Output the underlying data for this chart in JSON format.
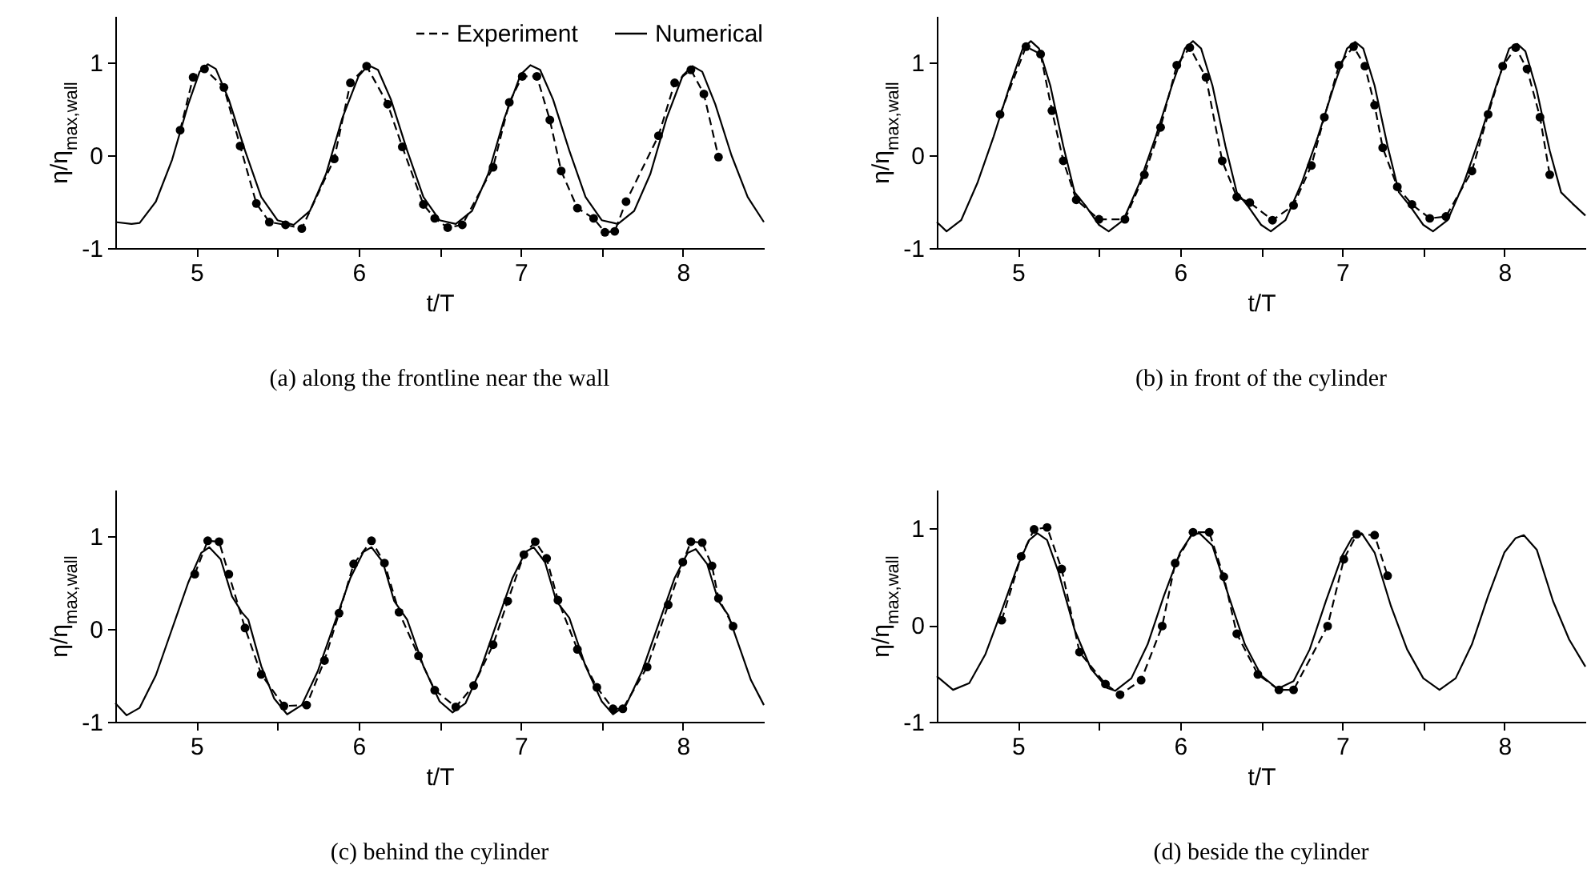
{
  "chart_data": [
    {
      "type": "line",
      "title": "(a) along the frontline near the wall",
      "xlabel": "t/T",
      "ylabel": "η/η$_{max,wall}$",
      "xlim": [
        4.5,
        8.5
      ],
      "ylim": [
        -1,
        1.5
      ],
      "xticks": [
        5,
        {
          "value": 5.5,
          "label": null
        },
        6,
        {
          "value": 6.5,
          "label": null
        },
        7,
        {
          "value": 7.5,
          "label": null
        },
        8
      ],
      "yticks": [
        -1,
        0,
        1
      ],
      "legend": "top right",
      "series": [
        {
          "name": "Experiment",
          "color": "#000000",
          "line_style": "dashed",
          "marker": "circle",
          "x": [
            4.9,
            4.98,
            5.05,
            5.17,
            5.27,
            5.37,
            5.45,
            5.55,
            5.65,
            5.85,
            5.95,
            6.05,
            6.18,
            6.27,
            6.4,
            6.47,
            6.55,
            6.64,
            6.83,
            6.93,
            7.01,
            7.1,
            7.18,
            7.25,
            7.35,
            7.45,
            7.52,
            7.58,
            7.65,
            7.85,
            7.95,
            8.05,
            8.13,
            8.22
          ],
          "values": [
            0.27,
            0.84,
            0.93,
            0.73,
            0.1,
            -0.52,
            -0.72,
            -0.75,
            -0.79,
            -0.04,
            0.78,
            0.96,
            0.55,
            0.09,
            -0.53,
            -0.68,
            -0.78,
            -0.75,
            -0.13,
            0.57,
            0.85,
            0.85,
            0.38,
            -0.17,
            -0.57,
            -0.68,
            -0.83,
            -0.82,
            -0.5,
            0.21,
            0.78,
            0.92,
            0.66,
            -0.02
          ]
        },
        {
          "name": "Numerical",
          "color": "#000000",
          "line_style": "solid",
          "marker": "none",
          "x": [
            4.5,
            4.6,
            4.65,
            4.75,
            4.85,
            4.95,
            5.02,
            5.07,
            5.12,
            5.2,
            5.3,
            5.4,
            5.5,
            5.6,
            5.7,
            5.8,
            5.9,
            6.0,
            6.06,
            6.12,
            6.2,
            6.3,
            6.4,
            6.5,
            6.6,
            6.7,
            6.8,
            6.9,
            7.0,
            7.06,
            7.12,
            7.2,
            7.3,
            7.4,
            7.5,
            7.6,
            7.7,
            7.8,
            7.9,
            8.0,
            8.06,
            8.12,
            8.2,
            8.3,
            8.4,
            8.5
          ],
          "values": [
            -0.72,
            -0.74,
            -0.73,
            -0.5,
            -0.05,
            0.55,
            0.9,
            0.98,
            0.93,
            0.6,
            0.05,
            -0.45,
            -0.7,
            -0.75,
            -0.6,
            -0.2,
            0.4,
            0.85,
            0.97,
            0.92,
            0.6,
            0.05,
            -0.45,
            -0.7,
            -0.74,
            -0.6,
            -0.2,
            0.4,
            0.87,
            0.97,
            0.92,
            0.6,
            0.05,
            -0.45,
            -0.7,
            -0.74,
            -0.6,
            -0.2,
            0.4,
            0.86,
            0.96,
            0.9,
            0.55,
            0.0,
            -0.45,
            -0.72
          ]
        }
      ]
    },
    {
      "type": "line",
      "title": "(b) in front of the cylinder",
      "xlabel": "t/T",
      "ylabel": "η/η$_{max,wall}$",
      "xlim": [
        4.5,
        8.5
      ],
      "ylim": [
        -1,
        1.5
      ],
      "xticks": [
        5,
        {
          "value": 5.5,
          "label": null
        },
        6,
        {
          "value": 6.5,
          "label": null
        },
        7,
        {
          "value": 7.5,
          "label": null
        },
        8
      ],
      "yticks": [
        -1,
        0,
        1
      ],
      "series": [
        {
          "color": "#000000",
          "line_style": "dashed",
          "marker": "circle",
          "x": [
            4.89,
            5.05,
            5.14,
            5.21,
            5.28,
            5.36,
            5.5,
            5.66,
            5.78,
            5.88,
            5.98,
            6.06,
            6.16,
            6.26,
            6.35,
            6.43,
            6.57,
            6.7,
            6.81,
            6.89,
            6.98,
            7.07,
            7.14,
            7.2,
            7.25,
            7.34,
            7.43,
            7.54,
            7.64,
            7.8,
            7.9,
            7.99,
            8.07,
            8.14,
            8.22,
            8.28
          ],
          "values": [
            0.44,
            1.17,
            1.09,
            0.48,
            -0.06,
            -0.48,
            -0.69,
            -0.69,
            -0.21,
            0.3,
            0.97,
            1.16,
            0.84,
            -0.06,
            -0.45,
            -0.51,
            -0.7,
            -0.54,
            -0.11,
            0.41,
            0.97,
            1.17,
            0.96,
            0.54,
            0.08,
            -0.34,
            -0.53,
            -0.68,
            -0.66,
            -0.17,
            0.44,
            0.96,
            1.16,
            0.93,
            0.41,
            -0.21
          ]
        },
        {
          "color": "#000000",
          "line_style": "solid",
          "marker": "none",
          "x": [
            4.5,
            4.56,
            4.65,
            4.75,
            4.85,
            4.95,
            5.03,
            5.08,
            5.13,
            5.2,
            5.28,
            5.35,
            5.42,
            5.5,
            5.56,
            5.65,
            5.75,
            5.85,
            5.95,
            6.03,
            6.08,
            6.13,
            6.2,
            6.28,
            6.35,
            6.42,
            6.5,
            6.56,
            6.65,
            6.75,
            6.85,
            6.95,
            7.03,
            7.08,
            7.13,
            7.2,
            7.28,
            7.35,
            7.42,
            7.5,
            7.56,
            7.65,
            7.75,
            7.85,
            7.95,
            8.03,
            8.08,
            8.13,
            8.2,
            8.28,
            8.35,
            8.42,
            8.5
          ],
          "values": [
            -0.72,
            -0.82,
            -0.7,
            -0.3,
            0.2,
            0.75,
            1.15,
            1.23,
            1.15,
            0.75,
            0.1,
            -0.4,
            -0.55,
            -0.75,
            -0.82,
            -0.7,
            -0.3,
            0.2,
            0.75,
            1.15,
            1.23,
            1.15,
            0.75,
            0.1,
            -0.4,
            -0.55,
            -0.75,
            -0.82,
            -0.7,
            -0.3,
            0.2,
            0.75,
            1.15,
            1.22,
            1.15,
            0.75,
            0.1,
            -0.4,
            -0.55,
            -0.75,
            -0.82,
            -0.7,
            -0.3,
            0.2,
            0.75,
            1.15,
            1.2,
            1.12,
            0.7,
            0.05,
            -0.4,
            -0.52,
            -0.65
          ]
        }
      ]
    },
    {
      "type": "line",
      "title": "(c) behind the cylinder",
      "xlabel": "t/T",
      "ylabel": "η/η$_{max,wall}$",
      "xlim": [
        4.5,
        8.5
      ],
      "ylim": [
        -1,
        1.5
      ],
      "xticks": [
        5,
        {
          "value": 5.5,
          "label": null
        },
        6,
        {
          "value": 6.5,
          "label": null
        },
        7,
        {
          "value": 7.5,
          "label": null
        },
        8
      ],
      "yticks": [
        -1,
        0,
        1
      ],
      "series": [
        {
          "color": "#000000",
          "line_style": "dashed",
          "marker": "circle",
          "x": [
            4.99,
            5.07,
            5.14,
            5.2,
            5.3,
            5.4,
            5.54,
            5.68,
            5.79,
            5.88,
            5.97,
            6.08,
            6.16,
            6.25,
            6.37,
            6.47,
            6.6,
            6.71,
            6.83,
            6.92,
            7.02,
            7.09,
            7.16,
            7.23,
            7.35,
            7.47,
            7.57,
            7.63,
            7.78,
            7.91,
            8.0,
            8.05,
            8.12,
            8.18,
            8.22,
            8.31
          ],
          "values": [
            0.59,
            0.95,
            0.94,
            0.59,
            0.01,
            -0.49,
            -0.83,
            -0.82,
            -0.34,
            0.17,
            0.7,
            0.95,
            0.71,
            0.18,
            -0.29,
            -0.66,
            -0.84,
            -0.61,
            -0.17,
            0.3,
            0.8,
            0.94,
            0.76,
            0.31,
            -0.22,
            -0.63,
            -0.86,
            -0.86,
            -0.41,
            0.26,
            0.72,
            0.94,
            0.93,
            0.68,
            0.33,
            0.03
          ]
        },
        {
          "color": "#000000",
          "line_style": "solid",
          "marker": "none",
          "x": [
            4.5,
            4.57,
            4.65,
            4.75,
            4.85,
            4.95,
            5.03,
            5.08,
            5.15,
            5.22,
            5.28,
            5.32,
            5.4,
            5.48,
            5.56,
            5.65,
            5.75,
            5.85,
            5.95,
            6.03,
            6.08,
            6.15,
            6.22,
            6.3,
            6.4,
            6.5,
            6.58,
            6.66,
            6.75,
            6.85,
            6.95,
            7.03,
            7.08,
            7.15,
            7.22,
            7.3,
            7.4,
            7.5,
            7.57,
            7.65,
            7.75,
            7.85,
            7.95,
            8.03,
            8.08,
            8.15,
            8.22,
            8.28,
            8.35,
            8.42,
            8.5
          ],
          "values": [
            -0.8,
            -0.93,
            -0.85,
            -0.5,
            0.0,
            0.5,
            0.82,
            0.88,
            0.75,
            0.35,
            0.18,
            0.1,
            -0.4,
            -0.75,
            -0.92,
            -0.82,
            -0.45,
            0.05,
            0.55,
            0.83,
            0.88,
            0.72,
            0.3,
            0.1,
            -0.4,
            -0.78,
            -0.9,
            -0.8,
            -0.45,
            0.05,
            0.55,
            0.83,
            0.88,
            0.72,
            0.3,
            0.12,
            -0.4,
            -0.78,
            -0.92,
            -0.82,
            -0.45,
            0.05,
            0.55,
            0.82,
            0.86,
            0.7,
            0.3,
            0.15,
            -0.2,
            -0.55,
            -0.82
          ]
        }
      ]
    },
    {
      "type": "line",
      "title": "(d) beside the cylinder",
      "xlabel": "t/T",
      "ylabel": "η/η$_{max,wall}$",
      "xlim": [
        4.5,
        8.5
      ],
      "ylim": [
        -1,
        1.4
      ],
      "xticks": [
        5,
        {
          "value": 5.5,
          "label": null
        },
        6,
        {
          "value": 6.5,
          "label": null
        },
        7,
        {
          "value": 7.5,
          "label": null
        },
        8
      ],
      "yticks": [
        -1,
        0,
        1
      ],
      "series": [
        {
          "color": "#000000",
          "line_style": "dashed",
          "marker": "circle",
          "x": [
            4.9,
            5.02,
            5.1,
            5.18,
            5.27,
            5.38,
            5.54,
            5.63,
            5.76,
            5.89,
            5.97,
            6.08,
            6.18,
            6.27,
            6.35,
            6.48,
            6.61,
            6.7,
            6.91,
            7.01,
            7.09,
            7.2,
            7.28
          ],
          "values": [
            0.05,
            0.71,
            0.99,
            1.01,
            0.58,
            -0.28,
            -0.61,
            -0.72,
            -0.57,
            -0.01,
            0.64,
            0.96,
            0.96,
            0.5,
            -0.09,
            -0.51,
            -0.67,
            -0.67,
            -0.01,
            0.68,
            0.94,
            0.93,
            0.51
          ]
        },
        {
          "color": "#000000",
          "line_style": "solid",
          "marker": "none",
          "x": [
            4.5,
            4.6,
            4.7,
            4.8,
            4.9,
            5.0,
            5.07,
            5.12,
            5.18,
            5.25,
            5.35,
            5.45,
            5.55,
            5.6,
            5.7,
            5.8,
            5.9,
            6.0,
            6.07,
            6.12,
            6.2,
            6.3,
            6.4,
            6.5,
            6.6,
            6.7,
            6.8,
            6.9,
            7.0,
            7.06,
            7.12,
            7.2,
            7.3,
            7.4,
            7.5,
            7.6,
            7.7,
            7.8,
            7.9,
            8.0,
            8.07,
            8.12,
            8.2,
            8.3,
            8.4,
            8.5
          ],
          "values": [
            -0.53,
            -0.67,
            -0.6,
            -0.3,
            0.15,
            0.62,
            0.88,
            0.95,
            0.88,
            0.55,
            -0.05,
            -0.45,
            -0.65,
            -0.68,
            -0.55,
            -0.2,
            0.3,
            0.75,
            0.93,
            0.95,
            0.82,
            0.3,
            -0.2,
            -0.52,
            -0.66,
            -0.58,
            -0.25,
            0.25,
            0.72,
            0.9,
            0.95,
            0.75,
            0.2,
            -0.25,
            -0.55,
            -0.67,
            -0.55,
            -0.2,
            0.3,
            0.75,
            0.9,
            0.93,
            0.78,
            0.25,
            -0.15,
            -0.43
          ]
        }
      ]
    }
  ]
}
